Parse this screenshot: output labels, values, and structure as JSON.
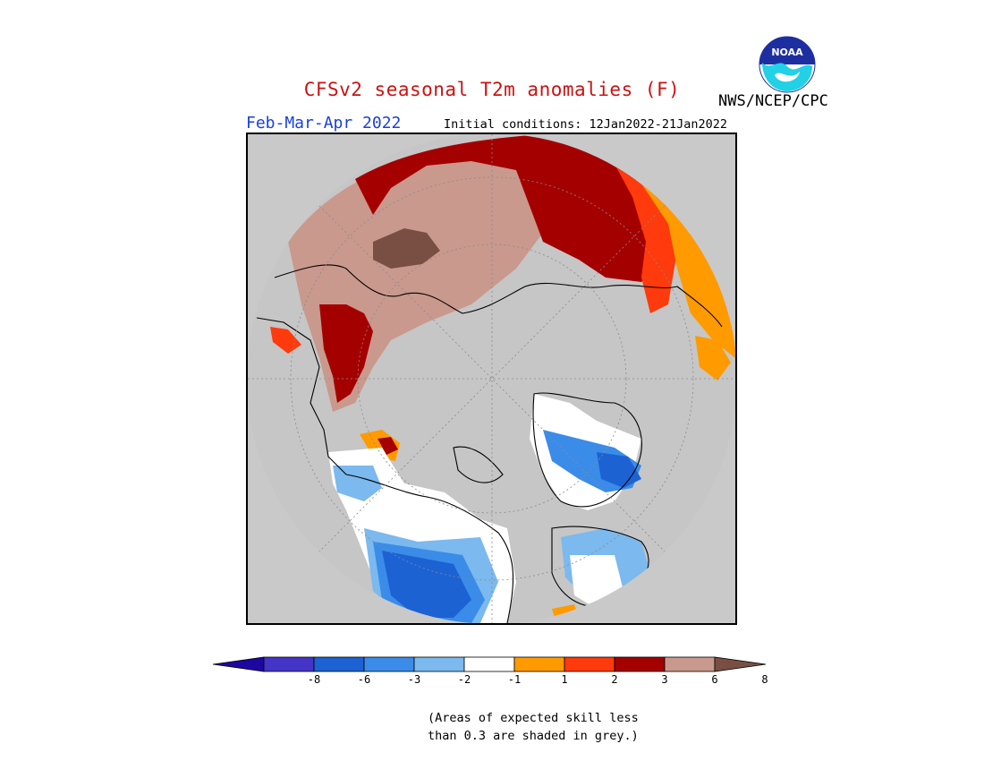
{
  "header": {
    "title": "CFSv2 seasonal T2m anomalies (F)",
    "season": "Feb-Mar-Apr 2022",
    "initial_conditions": "Initial conditions: 12Jan2022-21Jan2022",
    "agency": "NWS/NCEP/CPC",
    "logo_text": "NOAA"
  },
  "legend": {
    "colors": [
      "#1e06a0",
      "#4434c8",
      "#1c62d2",
      "#3a8ce8",
      "#7bb9ee",
      "#ffffff",
      "#ff9a00",
      "#ff3a0c",
      "#a50000",
      "#c9998e",
      "#7a4f43"
    ],
    "tick_labels": [
      "-8",
      "-6",
      "-3",
      "-2",
      "-1",
      "1",
      "2",
      "3",
      "6",
      "8"
    ]
  },
  "note": {
    "line1": "(Areas of expected skill less",
    "line2": "than 0.3 are shaded in grey.)"
  },
  "map": {
    "background_color": "#c9c9c9",
    "land_grey": "#c6c6c6",
    "coastline_color": "#000000",
    "grid_color": "#8a8a8a"
  }
}
